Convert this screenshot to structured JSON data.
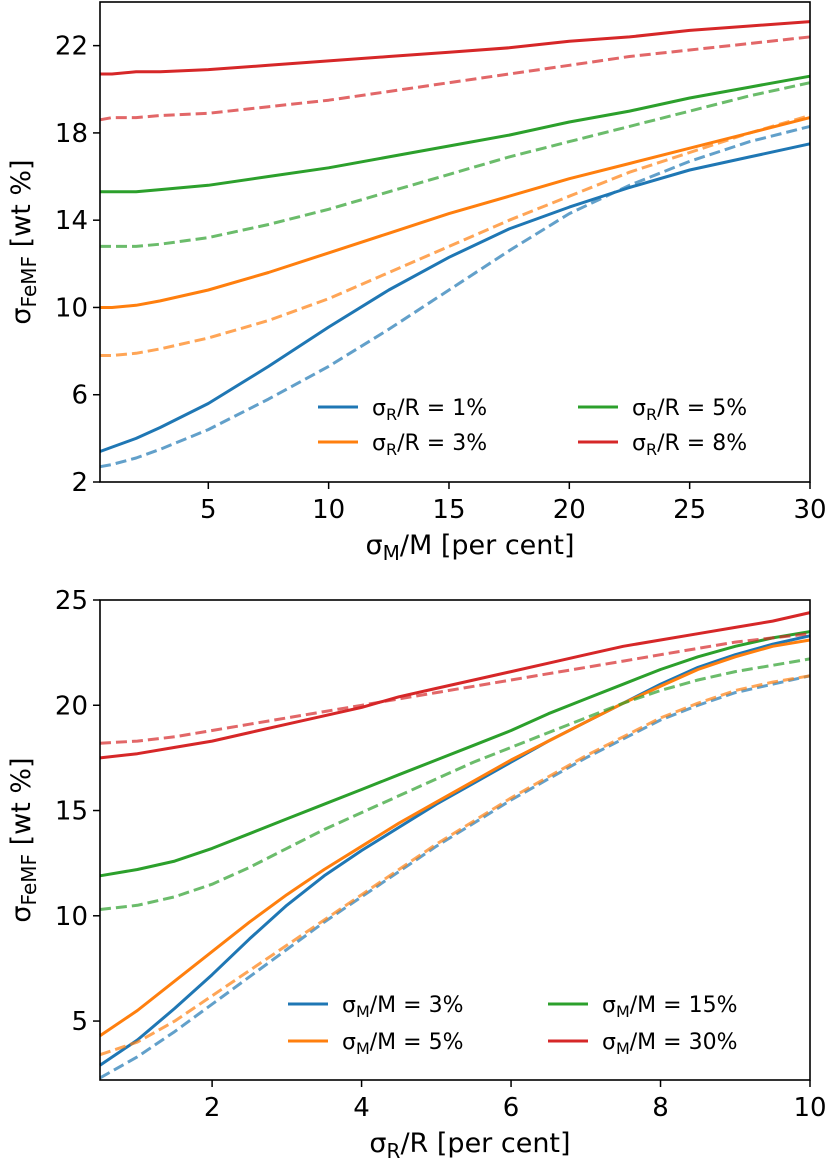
{
  "chart_data": [
    {
      "type": "line",
      "xlabel": "σM/M [per cent]",
      "ylabel": "σFeMF [wt %]",
      "xlim": [
        0.5,
        30
      ],
      "ylim": [
        2,
        24
      ],
      "xticks": [
        5,
        10,
        15,
        20,
        25,
        30
      ],
      "yticks": [
        2,
        6,
        10,
        14,
        18,
        22
      ],
      "grid": false,
      "legend_position": "lower-right",
      "x": [
        0.5,
        1,
        2,
        3,
        5,
        7.5,
        10,
        12.5,
        15,
        17.5,
        20,
        22.5,
        25,
        27.5,
        30
      ],
      "series": [
        {
          "name": "σR/R = 1%",
          "color": "#1f77b4",
          "style": "solid",
          "values": [
            3.4,
            3.6,
            4.0,
            4.5,
            5.6,
            7.3,
            9.1,
            10.8,
            12.3,
            13.6,
            14.6,
            15.5,
            16.3,
            16.9,
            17.5
          ]
        },
        {
          "name": "σR/R = 1%",
          "color": "#1f77b4",
          "style": "dashed",
          "in_legend": false,
          "values": [
            2.7,
            2.8,
            3.1,
            3.5,
            4.4,
            5.8,
            7.3,
            9.0,
            10.8,
            12.6,
            14.3,
            15.6,
            16.7,
            17.6,
            18.3
          ]
        },
        {
          "name": "σR/R = 3%",
          "color": "#ff7f0e",
          "style": "solid",
          "values": [
            10.0,
            10.0,
            10.1,
            10.3,
            10.8,
            11.6,
            12.5,
            13.4,
            14.3,
            15.1,
            15.9,
            16.6,
            17.3,
            18.0,
            18.7
          ]
        },
        {
          "name": "σR/R = 3%",
          "color": "#ff7f0e",
          "style": "dashed",
          "in_legend": false,
          "values": [
            7.8,
            7.8,
            7.9,
            8.1,
            8.6,
            9.4,
            10.4,
            11.6,
            12.8,
            14.0,
            15.1,
            16.2,
            17.1,
            18.0,
            18.8
          ]
        },
        {
          "name": "σR/R = 5%",
          "color": "#2ca02c",
          "style": "solid",
          "values": [
            15.3,
            15.3,
            15.3,
            15.4,
            15.6,
            16.0,
            16.4,
            16.9,
            17.4,
            17.9,
            18.5,
            19.0,
            19.6,
            20.1,
            20.6
          ]
        },
        {
          "name": "σR/R = 5%",
          "color": "#2ca02c",
          "style": "dashed",
          "in_legend": false,
          "values": [
            12.8,
            12.8,
            12.8,
            12.9,
            13.2,
            13.8,
            14.5,
            15.3,
            16.1,
            16.9,
            17.6,
            18.3,
            19.0,
            19.7,
            20.3
          ]
        },
        {
          "name": "σR/R = 8%",
          "color": "#d62728",
          "style": "solid",
          "values": [
            20.7,
            20.7,
            20.8,
            20.8,
            20.9,
            21.1,
            21.3,
            21.5,
            21.7,
            21.9,
            22.2,
            22.4,
            22.7,
            22.9,
            23.1
          ]
        },
        {
          "name": "σR/R = 8%",
          "color": "#d62728",
          "style": "dashed",
          "in_legend": false,
          "values": [
            18.6,
            18.7,
            18.7,
            18.8,
            18.9,
            19.2,
            19.5,
            19.9,
            20.3,
            20.7,
            21.1,
            21.5,
            21.8,
            22.1,
            22.4
          ]
        }
      ]
    },
    {
      "type": "line",
      "xlabel": "σR/R [per cent]",
      "ylabel": "σFeMF [wt %]",
      "xlim": [
        0.5,
        10
      ],
      "ylim": [
        2.2,
        25
      ],
      "xticks": [
        2,
        4,
        6,
        8,
        10
      ],
      "yticks": [
        5,
        10,
        15,
        20,
        25
      ],
      "grid": false,
      "legend_position": "lower-right",
      "x": [
        0.5,
        1,
        1.5,
        2,
        2.5,
        3,
        3.5,
        4,
        4.5,
        5,
        5.5,
        6,
        6.5,
        7,
        7.5,
        8,
        8.5,
        9,
        9.5,
        10
      ],
      "series": [
        {
          "name": "σM/M = 3%",
          "color": "#1f77b4",
          "style": "solid",
          "values": [
            2.9,
            4.1,
            5.6,
            7.2,
            8.9,
            10.5,
            11.9,
            13.1,
            14.2,
            15.3,
            16.3,
            17.3,
            18.3,
            19.2,
            20.1,
            21.0,
            21.8,
            22.4,
            22.9,
            23.3
          ]
        },
        {
          "name": "σM/M = 3%",
          "color": "#1f77b4",
          "style": "dashed",
          "in_legend": false,
          "values": [
            2.3,
            3.3,
            4.5,
            5.8,
            7.1,
            8.4,
            9.7,
            10.9,
            12.1,
            13.3,
            14.4,
            15.5,
            16.5,
            17.5,
            18.4,
            19.3,
            20.0,
            20.6,
            21.0,
            21.4
          ]
        },
        {
          "name": "σM/M = 5%",
          "color": "#ff7f0e",
          "style": "solid",
          "values": [
            4.3,
            5.5,
            6.9,
            8.3,
            9.7,
            11.0,
            12.2,
            13.3,
            14.4,
            15.4,
            16.4,
            17.4,
            18.3,
            19.2,
            20.1,
            20.9,
            21.7,
            22.3,
            22.8,
            23.1
          ]
        },
        {
          "name": "σM/M = 5%",
          "color": "#ff7f0e",
          "style": "dashed",
          "in_legend": false,
          "values": [
            3.4,
            4.0,
            5.0,
            6.2,
            7.4,
            8.6,
            9.8,
            11.0,
            12.2,
            13.4,
            14.5,
            15.6,
            16.6,
            17.6,
            18.5,
            19.4,
            20.1,
            20.7,
            21.1,
            21.4
          ]
        },
        {
          "name": "σM/M = 15%",
          "color": "#2ca02c",
          "style": "solid",
          "values": [
            11.9,
            12.2,
            12.6,
            13.2,
            13.9,
            14.6,
            15.3,
            16.0,
            16.7,
            17.4,
            18.1,
            18.8,
            19.6,
            20.3,
            21.0,
            21.7,
            22.3,
            22.8,
            23.2,
            23.5
          ]
        },
        {
          "name": "σM/M = 15%",
          "color": "#2ca02c",
          "style": "dashed",
          "in_legend": false,
          "values": [
            10.3,
            10.5,
            10.9,
            11.5,
            12.3,
            13.2,
            14.1,
            14.9,
            15.7,
            16.5,
            17.3,
            18.0,
            18.7,
            19.4,
            20.1,
            20.7,
            21.2,
            21.6,
            21.9,
            22.2
          ]
        },
        {
          "name": "σM/M = 30%",
          "color": "#d62728",
          "style": "solid",
          "values": [
            17.5,
            17.7,
            18.0,
            18.3,
            18.7,
            19.1,
            19.5,
            19.9,
            20.4,
            20.8,
            21.2,
            21.6,
            22.0,
            22.4,
            22.8,
            23.1,
            23.4,
            23.7,
            24.0,
            24.4
          ]
        },
        {
          "name": "σM/M = 30%",
          "color": "#d62728",
          "style": "dashed",
          "in_legend": false,
          "values": [
            18.2,
            18.3,
            18.5,
            18.8,
            19.1,
            19.4,
            19.7,
            20.0,
            20.3,
            20.6,
            20.9,
            21.2,
            21.5,
            21.8,
            22.1,
            22.4,
            22.7,
            23.0,
            23.2,
            23.4
          ]
        }
      ]
    }
  ]
}
